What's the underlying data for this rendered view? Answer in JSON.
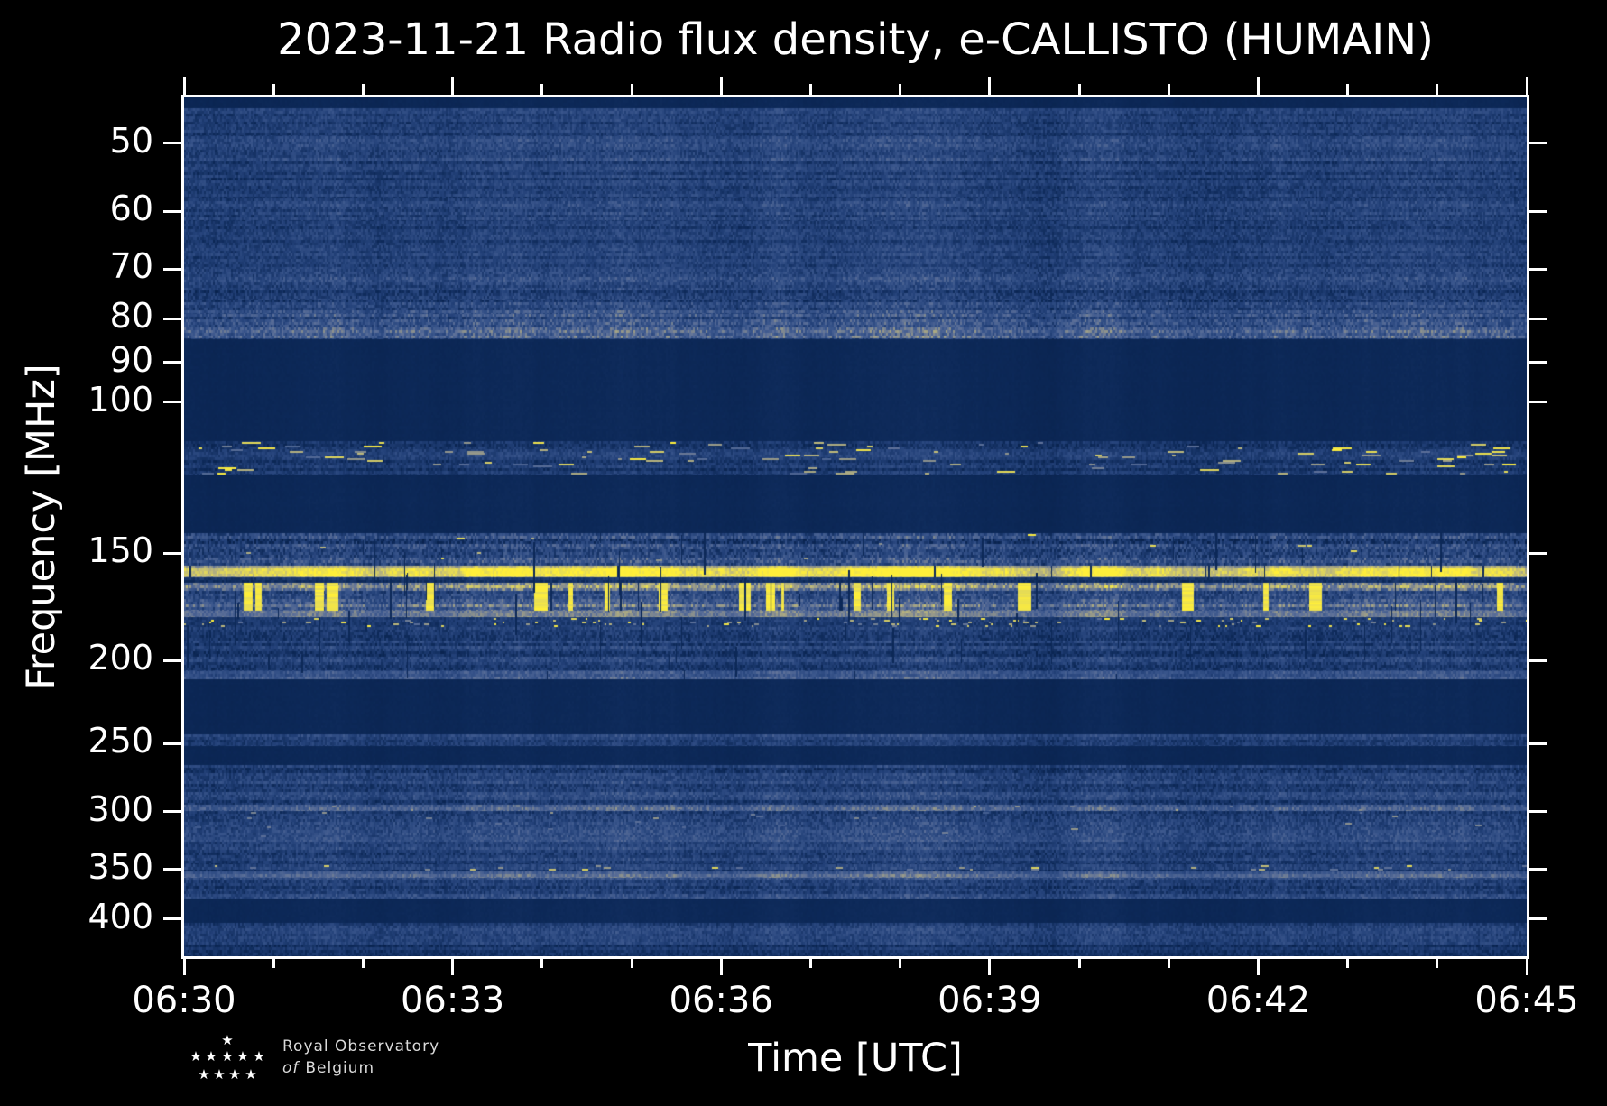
{
  "title": "2023-11-21 Radio flux density, e-CALLISTO (HUMAIN)",
  "axes": {
    "x_label": "Time [UTC]",
    "y_label": "Frequency [MHz]"
  },
  "footer": {
    "line1": "Royal Observatory",
    "line2_italic": "of",
    "line2_rest": "Belgium"
  },
  "chart_data": {
    "type": "heatmap",
    "title": "2023-11-21 Radio flux density, e-CALLISTO (HUMAIN)",
    "xlabel": "Time [UTC]",
    "ylabel": "Frequency [MHz]",
    "instrument": "e-CALLISTO (HUMAIN)",
    "date": "2023-11-21",
    "x_ticks": [
      "06:30",
      "06:33",
      "06:36",
      "06:39",
      "06:42",
      "06:45"
    ],
    "x_range_utc": [
      "06:30",
      "06:45"
    ],
    "x_minor_tick_every_minutes": 1,
    "x_major_tick_every_minutes": 3,
    "y_scale": "log",
    "y_range_mhz": [
      44.2,
      442
    ],
    "y_ticks_mhz": [
      50,
      60,
      70,
      80,
      90,
      100,
      150,
      200,
      250,
      300,
      350,
      400
    ],
    "grid": false,
    "legend": "none",
    "colormap": [
      {
        "v": 0.0,
        "c": "#061c42"
      },
      {
        "v": 0.12,
        "c": "#0c2857"
      },
      {
        "v": 0.3,
        "c": "#234179"
      },
      {
        "v": 0.45,
        "c": "#3a568c"
      },
      {
        "v": 0.58,
        "c": "#5e7199"
      },
      {
        "v": 0.7,
        "c": "#97998a"
      },
      {
        "v": 0.8,
        "c": "#bdb87b"
      },
      {
        "v": 0.9,
        "c": "#e4da58"
      },
      {
        "v": 1.0,
        "c": "#ffef3a"
      }
    ],
    "bands": [
      {
        "name": "top-edge-flat",
        "f0": 44.2,
        "f1": 45.5,
        "base": 0.11,
        "amp": 0.01,
        "row": 0.02
      },
      {
        "name": "galactic-noise-a",
        "f0": 45.5,
        "f1": 49.0,
        "base": 0.27,
        "amp": 0.1,
        "row": 0.25
      },
      {
        "name": "galactic-noise-b",
        "f0": 49.0,
        "f1": 52.5,
        "base": 0.31,
        "amp": 0.11,
        "row": 0.25
      },
      {
        "name": "galactic-noise-c",
        "f0": 52.5,
        "f1": 58.0,
        "base": 0.27,
        "amp": 0.1,
        "row": 0.25
      },
      {
        "name": "galactic-noise-d",
        "f0": 58.0,
        "f1": 61.5,
        "base": 0.3,
        "amp": 0.11,
        "row": 0.25
      },
      {
        "name": "galactic-noise-e",
        "f0": 61.5,
        "f1": 70.0,
        "base": 0.27,
        "amp": 0.1,
        "row": 0.25
      },
      {
        "name": "galactic-noise-f",
        "f0": 70.0,
        "f1": 76.0,
        "base": 0.3,
        "amp": 0.12,
        "row": 0.3
      },
      {
        "name": "vhf-76",
        "f0": 76.0,
        "f1": 79.0,
        "base": 0.33,
        "amp": 0.13,
        "row": 0.35
      },
      {
        "name": "vhf-80-bright-rows",
        "f0": 79.0,
        "f1": 84.5,
        "base": 0.36,
        "amp": 0.14,
        "row": 0.5,
        "brightRows": 0.22
      },
      {
        "name": "fm-band-blanked",
        "f0": 84.5,
        "f1": 111.0,
        "base": 0.115,
        "amp": 0.01,
        "row": 0.02
      },
      {
        "name": "airband-rfi-speckle",
        "f0": 111.0,
        "f1": 121.5,
        "base": 0.24,
        "amp": 0.09,
        "row": 0.3,
        "dash": {
          "prob": 0.035,
          "len0": 4,
          "len1": 22,
          "v0": 0.5,
          "v1": 1.0
        }
      },
      {
        "name": "blanked-125-140",
        "f0": 121.5,
        "f1": 142.0,
        "base": 0.115,
        "amp": 0.01,
        "row": 0.02
      },
      {
        "name": "band-145-textured",
        "f0": 142.0,
        "f1": 155.0,
        "base": 0.35,
        "amp": 0.16,
        "row": 0.4,
        "dash": {
          "prob": 0.005,
          "len0": 3,
          "len1": 10,
          "v0": 0.6,
          "v1": 1.0
        }
      },
      {
        "name": "rfi-line-157",
        "f0": 155.0,
        "f1": 160.0,
        "base": 0.9,
        "amp": 0.07,
        "row": 0.06,
        "line": true,
        "darkProb": 0.012
      },
      {
        "name": "gap-161",
        "f0": 160.0,
        "f1": 162.5,
        "base": 0.2,
        "amp": 0.07,
        "row": 0.2
      },
      {
        "name": "pager-bursts-168",
        "f0": 162.5,
        "f1": 175.0,
        "base": 0.52,
        "amp": 0.14,
        "row": 0.45,
        "bars": {
          "prob": 0.028,
          "w0": 2,
          "w1": 16
        },
        "darkProb": 0.012
      },
      {
        "name": "gray-row-176",
        "f0": 175.0,
        "f1": 178.0,
        "base": 0.56,
        "amp": 0.08,
        "row": 0.15
      },
      {
        "name": "dash-row-180",
        "f0": 178.0,
        "f1": 183.0,
        "base": 0.24,
        "amp": 0.08,
        "row": 0.25,
        "dash": {
          "prob": 0.1,
          "len0": 2,
          "len1": 7,
          "v0": 0.55,
          "v1": 1.0
        }
      },
      {
        "name": "band-190",
        "f0": 183.0,
        "f1": 206.0,
        "base": 0.28,
        "amp": 0.11,
        "row": 0.3
      },
      {
        "name": "gray-row-208",
        "f0": 206.0,
        "f1": 210.5,
        "base": 0.45,
        "amp": 0.09,
        "row": 0.15
      },
      {
        "name": "blanked-215-240",
        "f0": 210.5,
        "f1": 243.5,
        "base": 0.115,
        "amp": 0.01,
        "row": 0.02
      },
      {
        "name": "band-247",
        "f0": 243.5,
        "f1": 251.5,
        "base": 0.28,
        "amp": 0.1,
        "row": 0.3
      },
      {
        "name": "blanked-252-264",
        "f0": 251.5,
        "f1": 265.0,
        "base": 0.115,
        "amp": 0.01,
        "row": 0.02
      },
      {
        "name": "band-280",
        "f0": 265.0,
        "f1": 294.5,
        "base": 0.28,
        "amp": 0.11,
        "row": 0.3
      },
      {
        "name": "gray-dashline-297",
        "f0": 294.5,
        "f1": 299.5,
        "base": 0.46,
        "amp": 0.1,
        "row": 0.2,
        "dash": {
          "prob": 0.05,
          "len0": 2,
          "len1": 6,
          "v0": 0.5,
          "v1": 0.75
        }
      },
      {
        "name": "blob-band-310",
        "f0": 299.5,
        "f1": 321.0,
        "base": 0.3,
        "amp": 0.12,
        "row": 0.3,
        "dash": {
          "prob": 0.012,
          "len0": 3,
          "len1": 9,
          "v0": 0.45,
          "v1": 0.7
        }
      },
      {
        "name": "gray-row-323",
        "f0": 321.0,
        "f1": 325.0,
        "base": 0.42,
        "amp": 0.09,
        "row": 0.15
      },
      {
        "name": "band-335",
        "f0": 325.0,
        "f1": 345.0,
        "base": 0.28,
        "amp": 0.11,
        "row": 0.3
      },
      {
        "name": "dash-row-348",
        "f0": 345.0,
        "f1": 352.0,
        "base": 0.28,
        "amp": 0.1,
        "row": 0.25,
        "dash": {
          "prob": 0.05,
          "len0": 3,
          "len1": 10,
          "v0": 0.55,
          "v1": 0.9
        }
      },
      {
        "name": "gray-row-355",
        "f0": 352.0,
        "f1": 358.5,
        "base": 0.5,
        "amp": 0.08,
        "row": 0.12
      },
      {
        "name": "band-368",
        "f0": 358.5,
        "f1": 379.0,
        "base": 0.3,
        "amp": 0.11,
        "row": 0.3
      },
      {
        "name": "blanked-385-400",
        "f0": 379.0,
        "f1": 404.0,
        "base": 0.12,
        "amp": 0.01,
        "row": 0.02
      },
      {
        "name": "band-415",
        "f0": 404.0,
        "f1": 428.0,
        "base": 0.27,
        "amp": 0.1,
        "row": 0.3
      },
      {
        "name": "band-435-dim",
        "f0": 428.0,
        "f1": 442.0,
        "base": 0.22,
        "amp": 0.09,
        "row": 0.25
      }
    ],
    "glitch_drops": {
      "f0": 140,
      "f1": 214,
      "count": 80
    }
  }
}
